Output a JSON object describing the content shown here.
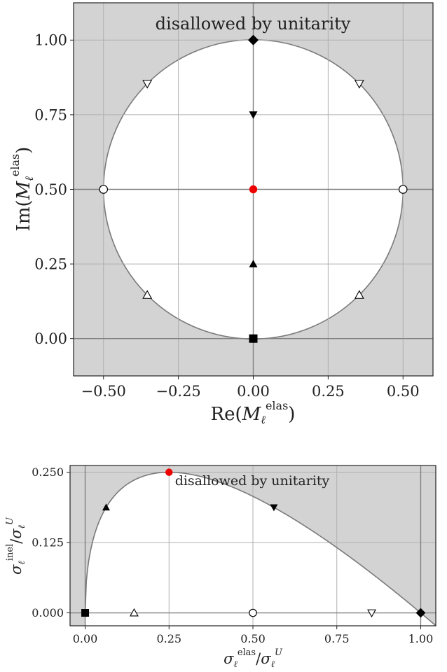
{
  "chart_data": [
    {
      "type": "scatter",
      "annotation": "disallowed by unitarity",
      "xlabel": "Re(M_ℓ^elas)",
      "ylabel": "Im(M_ℓ^elas)",
      "xlim": [
        -0.6,
        0.6
      ],
      "ylim": [
        -0.125,
        1.125
      ],
      "xticks": [
        -0.5,
        -0.25,
        0.0,
        0.25,
        0.5
      ],
      "xtick_labels": [
        "−0.50",
        "−0.25",
        "0.00",
        "0.25",
        "0.50"
      ],
      "yticks": [
        0.0,
        0.25,
        0.5,
        0.75,
        1.0
      ],
      "ytick_labels": [
        "0.00",
        "0.25",
        "0.50",
        "0.75",
        "1.00"
      ],
      "grid": true,
      "boundary": {
        "shape": "circle",
        "center": [
          0.0,
          0.5
        ],
        "radius": 0.5
      },
      "points": [
        {
          "x": 0.0,
          "y": 0.0,
          "marker": "square"
        },
        {
          "x": -0.354,
          "y": 0.146,
          "marker": "triangle-up-open"
        },
        {
          "x": 0.354,
          "y": 0.146,
          "marker": "triangle-up-open"
        },
        {
          "x": 0.0,
          "y": 0.25,
          "marker": "triangle-up"
        },
        {
          "x": -0.5,
          "y": 0.5,
          "marker": "circle-open"
        },
        {
          "x": 0.5,
          "y": 0.5,
          "marker": "circle-open"
        },
        {
          "x": 0.0,
          "y": 0.5,
          "marker": "circle-red"
        },
        {
          "x": 0.0,
          "y": 0.75,
          "marker": "triangle-down"
        },
        {
          "x": -0.354,
          "y": 0.854,
          "marker": "triangle-down-open"
        },
        {
          "x": 0.354,
          "y": 0.854,
          "marker": "triangle-down-open"
        },
        {
          "x": 0.0,
          "y": 1.0,
          "marker": "diamond"
        }
      ]
    },
    {
      "type": "scatter",
      "annotation": "disallowed by unitarity",
      "xlabel": "σ_ℓ^elas / σ_ℓ^U",
      "ylabel": "σ_ℓ^inel / σ_ℓ^U",
      "xlim": [
        -0.045,
        1.045
      ],
      "ylim": [
        -0.023,
        0.262
      ],
      "xticks": [
        0.0,
        0.25,
        0.5,
        0.75,
        1.0
      ],
      "xtick_labels": [
        "0.00",
        "0.25",
        "0.50",
        "0.75",
        "1.00"
      ],
      "yticks": [
        0.0,
        0.125,
        0.25
      ],
      "ytick_labels": [
        "0.000",
        "0.125",
        "0.250"
      ],
      "grid": true,
      "boundary": {
        "curve": "y = sqrt(x) - x"
      },
      "points": [
        {
          "x": 0.0,
          "y": 0.0,
          "marker": "square"
        },
        {
          "x": 0.146,
          "y": 0.0,
          "marker": "triangle-up-open"
        },
        {
          "x": 0.0625,
          "y": 0.1875,
          "marker": "triangle-up"
        },
        {
          "x": 0.25,
          "y": 0.25,
          "marker": "circle-red"
        },
        {
          "x": 0.5,
          "y": 0.0,
          "marker": "circle-open"
        },
        {
          "x": 0.5625,
          "y": 0.1875,
          "marker": "triangle-down"
        },
        {
          "x": 0.854,
          "y": 0.0,
          "marker": "triangle-down-open"
        },
        {
          "x": 1.0,
          "y": 0.0,
          "marker": "diamond"
        }
      ]
    }
  ]
}
